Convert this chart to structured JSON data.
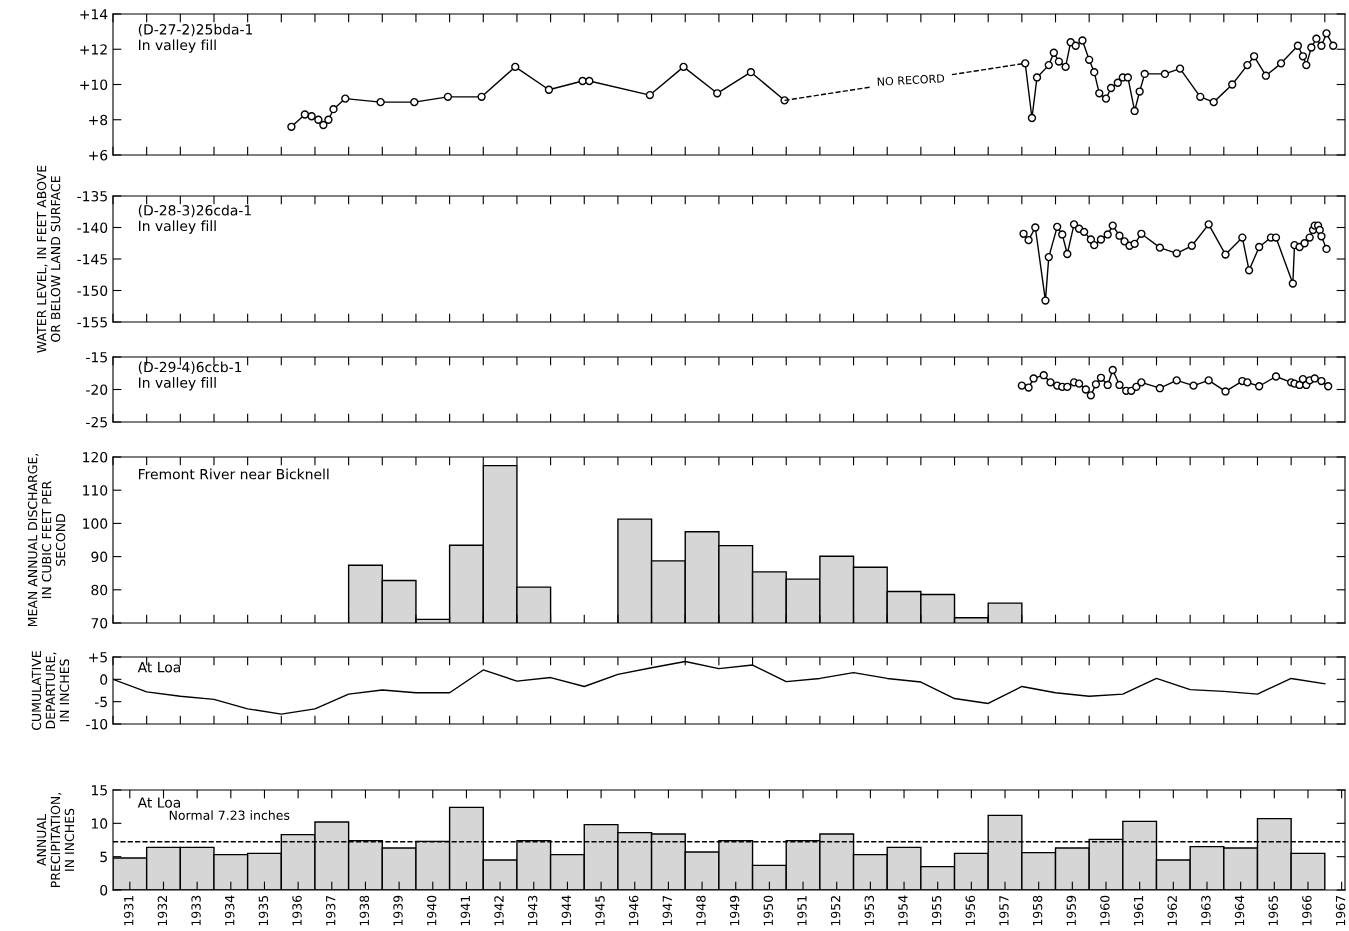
{
  "chart_data": [
    {
      "type": "line",
      "marker": "circle",
      "tick_labels": "y",
      "xlim": [
        1931,
        1967.6
      ],
      "xticks": [
        1931,
        1932,
        1933,
        1934,
        1935,
        1936,
        1937,
        1938,
        1939,
        1940,
        1941,
        1942,
        1943,
        1944,
        1945,
        1946,
        1947,
        1948,
        1949,
        1950,
        1951,
        1952,
        1953,
        1954,
        1955,
        1956,
        1957,
        1958,
        1959,
        1960,
        1961,
        1962,
        1963,
        1964,
        1965,
        1966,
        1967
      ],
      "ylim": [
        6,
        14
      ],
      "yticks": [
        {
          "value": 6,
          "label": "+6"
        },
        {
          "value": 8,
          "label": "+8"
        },
        {
          "value": 10,
          "label": "+10"
        },
        {
          "value": 12,
          "label": "+12"
        },
        {
          "value": 14,
          "label": "+14"
        }
      ],
      "annotations": [
        "(D-27-2)25bda-1\nIn valley fill",
        {
          "text": "NO RECORD",
          "x": 1954.7,
          "y": 10.2
        }
      ],
      "series": [
        {
          "color": "#000000",
          "x": [
            1936.3,
            1936.7,
            1936.9,
            1937.1,
            1937.25,
            1937.4,
            1937.55,
            1937.9,
            1938.95,
            1939.95,
            1940.95,
            1941.95,
            1942.95,
            1943.95,
            1944.95,
            1945.15,
            1946.95,
            1947.95,
            1948.95,
            1949.95,
            1950.95
          ],
          "values": [
            7.6,
            8.3,
            8.2,
            8.0,
            7.7,
            8.0,
            8.6,
            9.2,
            9.0,
            9.0,
            9.3,
            9.3,
            11.0,
            9.7,
            10.2,
            10.2,
            9.4,
            11.0,
            9.5,
            10.7,
            9.1
          ]
        },
        {
          "color": "#000000",
          "line_style": "dashed",
          "marker": "none",
          "x": [
            1950.95,
            1958.1
          ],
          "values": [
            9.1,
            11.2
          ]
        },
        {
          "color": "#000000",
          "x": [
            1958.1,
            1958.3,
            1958.45,
            1958.8,
            1958.95,
            1959.1,
            1959.3,
            1959.45,
            1959.6,
            1959.8,
            1960.0,
            1960.15,
            1960.3,
            1960.5,
            1960.65,
            1960.85,
            1961.0,
            1961.15,
            1961.35,
            1961.5,
            1961.65,
            1962.25,
            1962.7,
            1963.3,
            1963.7,
            1964.25,
            1964.7,
            1964.9,
            1965.25,
            1965.7,
            1966.2,
            1966.35,
            1966.45,
            1966.6,
            1966.75,
            1966.9,
            1967.05,
            1967.25
          ],
          "values": [
            11.2,
            8.1,
            10.4,
            11.1,
            11.8,
            11.3,
            11.0,
            12.4,
            12.2,
            12.5,
            11.4,
            10.7,
            9.5,
            9.2,
            9.8,
            10.1,
            10.4,
            10.4,
            8.5,
            9.6,
            10.6,
            10.6,
            10.9,
            9.3,
            9.0,
            10.0,
            11.1,
            11.6,
            10.5,
            11.2,
            12.2,
            11.6,
            11.1,
            12.1,
            12.6,
            12.2,
            12.9,
            12.2
          ]
        }
      ]
    },
    {
      "type": "line",
      "marker": "circle",
      "tick_labels": "y",
      "xlim": [
        1931,
        1967.6
      ],
      "xticks": [
        1931,
        1932,
        1933,
        1934,
        1935,
        1936,
        1937,
        1938,
        1939,
        1940,
        1941,
        1942,
        1943,
        1944,
        1945,
        1946,
        1947,
        1948,
        1949,
        1950,
        1951,
        1952,
        1953,
        1954,
        1955,
        1956,
        1957,
        1958,
        1959,
        1960,
        1961,
        1962,
        1963,
        1964,
        1965,
        1966,
        1967
      ],
      "ylim": [
        -155,
        -135
      ],
      "yticks": [
        -155,
        -150,
        -145,
        -140,
        -135
      ],
      "ylabel": "WATER LEVEL, IN FEET ABOVE\nOR BELOW LAND SURFACE",
      "annotations": [
        "(D-28-3)26cda-1\nIn valley fill"
      ],
      "series": [
        {
          "color": "#000000",
          "x": [
            1958.05,
            1958.2,
            1958.4,
            1958.7,
            1958.8,
            1959.05,
            1959.2,
            1959.35,
            1959.55,
            1959.7,
            1959.85,
            1960.05,
            1960.15,
            1960.35,
            1960.55,
            1960.7,
            1960.9,
            1961.05,
            1961.2,
            1961.35,
            1961.55,
            1962.1,
            1962.6,
            1963.05,
            1963.55,
            1964.05,
            1964.55,
            1964.75,
            1965.05,
            1965.4,
            1965.55,
            1966.05,
            1966.1,
            1966.25,
            1966.4,
            1966.55,
            1966.65,
            1966.7,
            1966.8,
            1966.85,
            1966.9,
            1967.05
          ],
          "values": [
            -141.0,
            -142.0,
            -140.0,
            -151.6,
            -144.7,
            -139.9,
            -141.1,
            -144.2,
            -139.5,
            -140.2,
            -140.7,
            -141.9,
            -142.8,
            -141.9,
            -141.1,
            -139.7,
            -141.3,
            -142.2,
            -142.9,
            -142.6,
            -141.0,
            -143.2,
            -144.1,
            -142.9,
            -139.5,
            -144.3,
            -141.6,
            -146.8,
            -143.1,
            -141.6,
            -141.6,
            -148.9,
            -142.8,
            -143.1,
            -142.5,
            -141.6,
            -140.4,
            -139.7,
            -139.7,
            -140.4,
            -141.4,
            -143.4
          ]
        }
      ]
    },
    {
      "type": "line",
      "marker": "circle",
      "tick_labels": "y",
      "xlim": [
        1931,
        1967.6
      ],
      "xticks": [
        1931,
        1932,
        1933,
        1934,
        1935,
        1936,
        1937,
        1938,
        1939,
        1940,
        1941,
        1942,
        1943,
        1944,
        1945,
        1946,
        1947,
        1948,
        1949,
        1950,
        1951,
        1952,
        1953,
        1954,
        1955,
        1956,
        1957,
        1958,
        1959,
        1960,
        1961,
        1962,
        1963,
        1964,
        1965,
        1966,
        1967
      ],
      "ylim": [
        -25,
        -15
      ],
      "yticks": [
        -25,
        -20,
        -15
      ],
      "annotations": [
        "(D-29-4)6ccb-1\nIn valley fill"
      ],
      "series": [
        {
          "color": "#000000",
          "x": [
            1958.0,
            1958.2,
            1958.35,
            1958.65,
            1958.85,
            1959.05,
            1959.2,
            1959.35,
            1959.55,
            1959.7,
            1959.9,
            1960.05,
            1960.2,
            1960.35,
            1960.55,
            1960.7,
            1960.9,
            1961.1,
            1961.25,
            1961.4,
            1961.55,
            1962.1,
            1962.6,
            1963.1,
            1963.55,
            1964.05,
            1964.55,
            1964.7,
            1965.05,
            1965.55,
            1966.0,
            1966.1,
            1966.25,
            1966.35,
            1966.45,
            1966.55,
            1966.7,
            1966.9,
            1967.1
          ],
          "values": [
            -19.4,
            -19.7,
            -18.3,
            -17.8,
            -18.9,
            -19.4,
            -19.6,
            -19.6,
            -18.9,
            -19.1,
            -20.0,
            -20.9,
            -19.2,
            -18.2,
            -19.3,
            -17.0,
            -19.3,
            -20.2,
            -20.2,
            -19.6,
            -18.9,
            -19.8,
            -18.6,
            -19.4,
            -18.6,
            -20.3,
            -18.7,
            -18.9,
            -19.5,
            -18.0,
            -18.9,
            -19.1,
            -19.3,
            -18.4,
            -19.3,
            -18.6,
            -18.3,
            -18.7,
            -19.5
          ]
        }
      ]
    },
    {
      "type": "bar",
      "tick_labels": "y",
      "xlim": [
        1931,
        1967.6
      ],
      "xticks": [
        1931,
        1932,
        1933,
        1934,
        1935,
        1936,
        1937,
        1938,
        1939,
        1940,
        1941,
        1942,
        1943,
        1944,
        1945,
        1946,
        1947,
        1948,
        1949,
        1950,
        1951,
        1952,
        1953,
        1954,
        1955,
        1956,
        1957,
        1958,
        1959,
        1960,
        1961,
        1962,
        1963,
        1964,
        1965,
        1966,
        1967
      ],
      "ylim": [
        70,
        120
      ],
      "yticks": [
        70,
        80,
        90,
        100,
        110,
        120
      ],
      "ylabel": "MEAN ANNUAL DISCHARGE,\nIN CUBIC FEET PER\nSECOND",
      "annotations": [
        "Fremont River near Bicknell"
      ],
      "series": [
        {
          "color": "#d6d6d6",
          "x": [
            1938.5,
            1939.5,
            1940.5,
            1941.5,
            1942.5,
            1943.5,
            1946.5,
            1947.5,
            1948.5,
            1949.5,
            1950.5,
            1951.5,
            1952.5,
            1953.5,
            1954.5,
            1955.5,
            1956.5,
            1957.5
          ],
          "values": [
            87.4,
            82.8,
            71.1,
            93.4,
            117.4,
            80.8,
            101.3,
            88.7,
            97.5,
            93.3,
            85.4,
            83.2,
            90.1,
            86.8,
            79.5,
            78.6,
            71.6,
            76.0
          ]
        }
      ]
    },
    {
      "type": "line",
      "tick_labels": "y",
      "xlim": [
        1931,
        1967.6
      ],
      "xticks": [
        1931,
        1932,
        1933,
        1934,
        1935,
        1936,
        1937,
        1938,
        1939,
        1940,
        1941,
        1942,
        1943,
        1944,
        1945,
        1946,
        1947,
        1948,
        1949,
        1950,
        1951,
        1952,
        1953,
        1954,
        1955,
        1956,
        1957,
        1958,
        1959,
        1960,
        1961,
        1962,
        1963,
        1964,
        1965,
        1966,
        1967
      ],
      "ylim": [
        -10,
        5
      ],
      "yticks": [
        -10,
        -5,
        0,
        {
          "value": 5,
          "label": "+5"
        }
      ],
      "ylabel": "CUMULATIVE\nDEPARTURE,\nIN INCHES",
      "annotations": [
        "At Loa"
      ],
      "series": [
        {
          "color": "#000000",
          "x": [
            1931,
            1932,
            1933,
            1934,
            1935,
            1936,
            1937,
            1938,
            1939,
            1940,
            1941,
            1942,
            1943,
            1944,
            1945,
            1946,
            1947,
            1948,
            1949,
            1950,
            1951,
            1952,
            1953,
            1954,
            1955,
            1956,
            1957,
            1958,
            1959,
            1960,
            1961,
            1962,
            1963,
            1964,
            1965,
            1966,
            1967
          ],
          "values": [
            0,
            -2.8,
            -3.8,
            -4.5,
            -6.6,
            -7.8,
            -6.6,
            -3.3,
            -2.4,
            -3.0,
            -3.0,
            2.1,
            -0.4,
            0.4,
            -1.6,
            1.1,
            2.6,
            4.0,
            2.4,
            3.2,
            -0.5,
            0.2,
            1.5,
            0.2,
            -0.6,
            -4.3,
            -5.4,
            -1.6,
            -3.0,
            -3.8,
            -3.3,
            0.2,
            -2.3,
            -2.7,
            -3.3,
            0.2,
            -1.0
          ]
        }
      ]
    },
    {
      "type": "bar",
      "xlim": [
        1931,
        1967.6
      ],
      "xticks": [
        {
          "value": 1931.5,
          "label": "1931"
        },
        {
          "value": 1932.5,
          "label": "1932"
        },
        {
          "value": 1933.5,
          "label": "1933"
        },
        {
          "value": 1934.5,
          "label": "1934"
        },
        {
          "value": 1935.5,
          "label": "1935"
        },
        {
          "value": 1936.5,
          "label": "1936"
        },
        {
          "value": 1937.5,
          "label": "1937"
        },
        {
          "value": 1938.5,
          "label": "1938"
        },
        {
          "value": 1939.5,
          "label": "1939"
        },
        {
          "value": 1940.5,
          "label": "1940"
        },
        {
          "value": 1941.5,
          "label": "1941"
        },
        {
          "value": 1942.5,
          "label": "1942"
        },
        {
          "value": 1943.5,
          "label": "1943"
        },
        {
          "value": 1944.5,
          "label": "1944"
        },
        {
          "value": 1945.5,
          "label": "1945"
        },
        {
          "value": 1946.5,
          "label": "1946"
        },
        {
          "value": 1947.5,
          "label": "1947"
        },
        {
          "value": 1948.5,
          "label": "1948"
        },
        {
          "value": 1949.5,
          "label": "1949"
        },
        {
          "value": 1950.5,
          "label": "1950"
        },
        {
          "value": 1951.5,
          "label": "1951"
        },
        {
          "value": 1952.5,
          "label": "1952"
        },
        {
          "value": 1953.5,
          "label": "1953"
        },
        {
          "value": 1954.5,
          "label": "1954"
        },
        {
          "value": 1955.5,
          "label": "1955"
        },
        {
          "value": 1956.5,
          "label": "1956"
        },
        {
          "value": 1957.5,
          "label": "1957"
        },
        {
          "value": 1958.5,
          "label": "1958"
        },
        {
          "value": 1959.5,
          "label": "1959"
        },
        {
          "value": 1960.5,
          "label": "1960"
        },
        {
          "value": 1961.5,
          "label": "1961"
        },
        {
          "value": 1962.5,
          "label": "1962"
        },
        {
          "value": 1963.5,
          "label": "1963"
        },
        {
          "value": 1964.5,
          "label": "1964"
        },
        {
          "value": 1965.5,
          "label": "1965"
        },
        {
          "value": 1966.5,
          "label": "1966"
        },
        {
          "value": 1967.5,
          "label": "1967"
        }
      ],
      "ylim": [
        0,
        15
      ],
      "yticks": [
        0,
        5,
        10,
        15
      ],
      "ylabel": "ANNUAL\nPRECIPITATION,\nIN INCHES",
      "annotations": [
        "At Loa"
      ],
      "ref_lines": [
        {
          "axis": "y",
          "value": 7.23,
          "label": "Normal 7.23 inches",
          "line_style": "dashed",
          "color": "#000000"
        }
      ],
      "series": [
        {
          "color": "#d6d6d6",
          "x": [
            1931.5,
            1932.5,
            1933.5,
            1934.5,
            1935.5,
            1936.5,
            1937.5,
            1938.5,
            1939.5,
            1940.5,
            1941.5,
            1942.5,
            1943.5,
            1944.5,
            1945.5,
            1946.5,
            1947.5,
            1948.5,
            1949.5,
            1950.5,
            1951.5,
            1952.5,
            1953.5,
            1954.5,
            1955.5,
            1956.5,
            1957.5,
            1958.5,
            1959.5,
            1960.5,
            1961.5,
            1962.5,
            1963.5,
            1964.5,
            1965.5,
            1966.5
          ],
          "values": [
            4.8,
            6.4,
            6.4,
            5.3,
            5.5,
            8.3,
            10.2,
            7.4,
            6.3,
            7.3,
            12.4,
            4.5,
            7.4,
            5.3,
            9.8,
            8.6,
            8.4,
            5.7,
            7.4,
            3.7,
            7.4,
            8.4,
            5.3,
            6.4,
            3.5,
            5.5,
            11.2,
            5.6,
            6.3,
            7.6,
            10.3,
            4.5,
            6.5,
            6.3,
            10.7,
            5.5
          ]
        }
      ]
    }
  ]
}
